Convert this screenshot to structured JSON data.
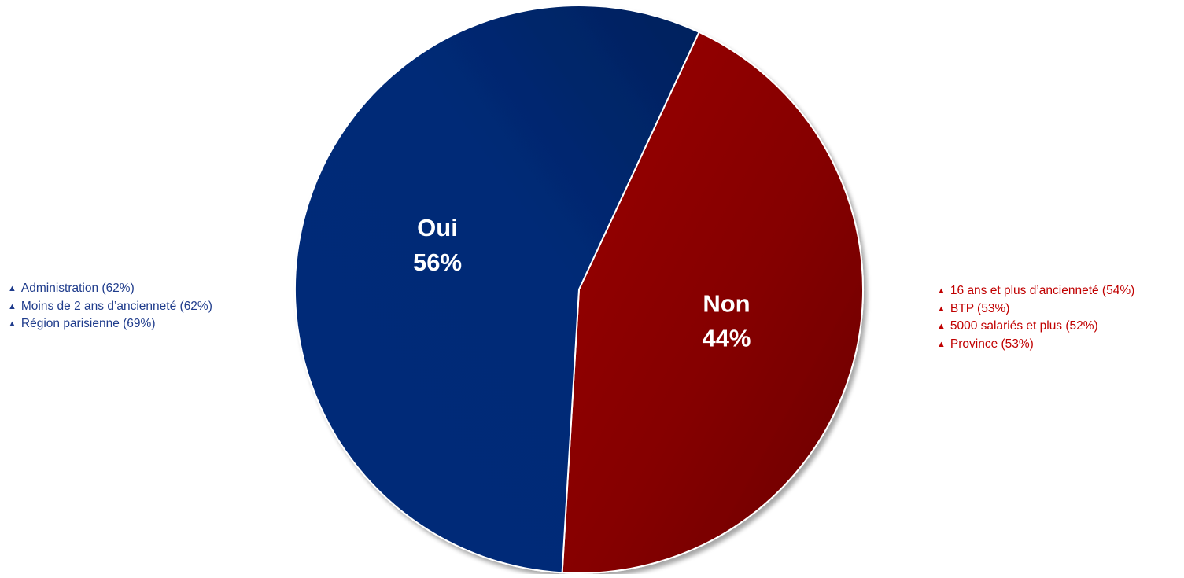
{
  "chart_data": {
    "type": "pie",
    "slices": [
      {
        "label": "Oui",
        "value": 56,
        "value_label": "56%",
        "color": "#002a78"
      },
      {
        "label": "Non",
        "value": 44,
        "value_label": "44%",
        "color": "#8b0000"
      }
    ],
    "annotations": {
      "oui": [
        "Administration (62%)",
        "Moins de 2 ans d’ancienneté (62%)",
        "Région parisienne (69%)"
      ],
      "non": [
        "16 ans et plus d’ancienneté (54%)",
        "BTP (53%)",
        "5000 salariés et plus (52%)",
        "Province (53%)"
      ]
    },
    "colors": {
      "oui_text": "#1f3c8c",
      "non_text": "#c00000"
    }
  }
}
